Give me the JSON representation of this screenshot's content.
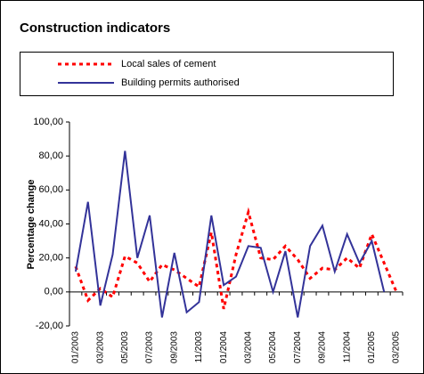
{
  "chart_data": {
    "type": "line",
    "title": "Construction indicators",
    "y_label": "Percentage change",
    "categories": [
      "01/2003",
      null,
      "03/2003",
      null,
      "05/2003",
      null,
      "07/2003",
      null,
      "09/2003",
      null,
      "11/2003",
      null,
      "01/2004",
      null,
      "03/2004",
      null,
      "05/2004",
      null,
      "07/2004",
      null,
      "09/2004",
      null,
      "11/2004",
      null,
      "01/2005",
      null,
      "03/2005"
    ],
    "series": [
      {
        "name": "Local sales of cement",
        "color": "#ff0000",
        "dash": true,
        "values": [
          15,
          -5,
          2,
          -3,
          21,
          17,
          6,
          16,
          13,
          8,
          3,
          35,
          -10,
          22,
          47,
          20,
          19,
          27,
          19,
          8,
          14,
          13,
          20,
          14,
          34,
          17,
          0
        ]
      },
      {
        "name": "Building permits authorised",
        "color": "#333399",
        "dash": false,
        "values": [
          12,
          53,
          -8,
          22,
          83,
          20,
          45,
          -15,
          23,
          -12,
          -6,
          45,
          4,
          9,
          27,
          26,
          0,
          24,
          -15,
          27,
          39,
          12,
          34,
          17,
          30,
          0,
          null
        ]
      }
    ],
    "ylim": [
      -20,
      100
    ],
    "yticks": [
      {
        "value": -20,
        "label": "-20,00"
      },
      {
        "value": 0,
        "label": "0,00"
      },
      {
        "value": 20,
        "label": "20,00"
      },
      {
        "value": 40,
        "label": "40,00"
      },
      {
        "value": 60,
        "label": "60,00"
      },
      {
        "value": 80,
        "label": "80,00"
      },
      {
        "value": 100,
        "label": "100,00"
      }
    ]
  }
}
